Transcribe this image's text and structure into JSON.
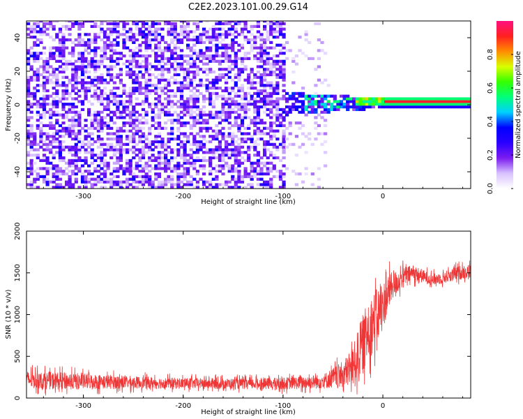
{
  "title": "C2E2.2023.101.00.29.G14",
  "colors": {
    "snr_line": "#ef3535",
    "background": "#ffffff",
    "axis": "#000000"
  },
  "chart_data": [
    {
      "type": "heatmap",
      "xlabel": "Height of straight line (km)",
      "ylabel": "Frequency (Hz)",
      "xlim": [
        -357,
        88
      ],
      "ylim": [
        -50,
        50
      ],
      "xticks": [
        -300,
        -200,
        -100,
        0
      ],
      "yticks": [
        -40,
        -20,
        0,
        20,
        40
      ],
      "colorbar": {
        "label": "Normalized spectral amplitude",
        "range": [
          0,
          1
        ],
        "ticks": [
          0.0,
          0.2,
          0.4,
          0.6,
          0.8
        ],
        "tick_labels": [
          "0.0",
          "0.2",
          "0.4",
          "0.6",
          "0.8"
        ],
        "colormap": [
          "#ffffff",
          "#d8c2ff",
          "#7b1cf0",
          "#2a00ff",
          "#0000ff",
          "#00d0ff",
          "#00ff7a",
          "#33ff00",
          "#d9ff00",
          "#ff8c00",
          "#ff2020",
          "#ff1080"
        ]
      },
      "regions": [
        {
          "description": "noise",
          "x_range": [
            -357,
            -100
          ],
          "f_range": [
            -50,
            50
          ],
          "amplitude": 0.15
        },
        {
          "description": "signal onset",
          "x_range": [
            -110,
            -20
          ],
          "f_range": [
            -8,
            8
          ],
          "amplitude": 0.35
        },
        {
          "description": "tone",
          "x_range": [
            0,
            88
          ],
          "f_center": 0.5,
          "amplitude": 0.95
        }
      ]
    },
    {
      "type": "line",
      "xlabel": "Height of straight line (km)",
      "ylabel": "SNR (10 * v/v)",
      "xlim": [
        -357,
        88
      ],
      "ylim": [
        0,
        2000
      ],
      "xticks": [
        -300,
        -200,
        -100,
        0
      ],
      "yticks": [
        0,
        500,
        1000,
        1500,
        2000
      ],
      "series": [
        {
          "x": [
            -357,
            -340,
            -320,
            -300,
            -280,
            -260,
            -240,
            -220,
            -200,
            -180,
            -160,
            -140,
            -120,
            -100,
            -80,
            -60,
            -40,
            -30,
            -20,
            -15,
            -10,
            -5,
            0,
            5,
            10,
            20,
            30,
            40,
            50,
            60,
            70,
            80,
            88
          ],
          "y": [
            220,
            210,
            205,
            200,
            195,
            190,
            185,
            180,
            178,
            175,
            172,
            170,
            172,
            175,
            185,
            200,
            280,
            380,
            650,
            800,
            900,
            1000,
            1100,
            1250,
            1350,
            1450,
            1500,
            1460,
            1420,
            1440,
            1480,
            1510,
            1520
          ],
          "noise": [
            130,
            130,
            130,
            120,
            110,
            100,
            90,
            85,
            80,
            80,
            80,
            80,
            85,
            90,
            100,
            110,
            200,
            300,
            450,
            450,
            450,
            400,
            350,
            300,
            200,
            150,
            120,
            100,
            90,
            90,
            100,
            110,
            110
          ]
        }
      ]
    }
  ]
}
